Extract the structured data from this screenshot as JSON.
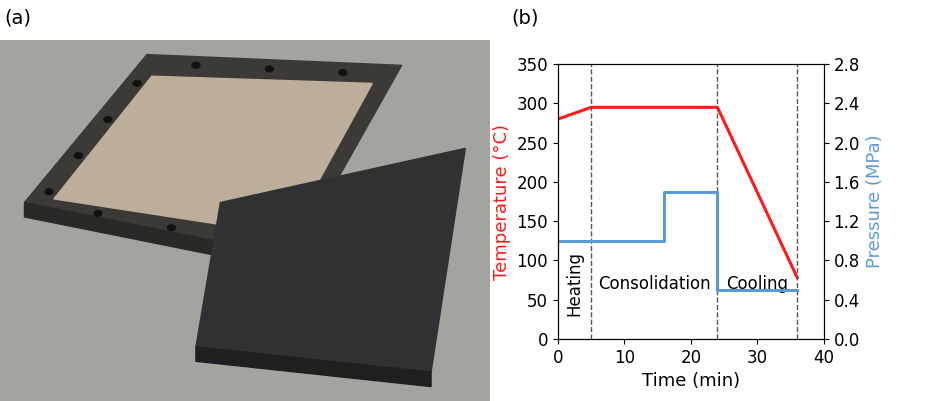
{
  "panel_labels": [
    "(a)",
    "(b)"
  ],
  "chart_data": {
    "type": "line",
    "xlabel": "Time (min)",
    "ylabel": "Temperature (°C)",
    "y2label": "Pressure (MPa)",
    "xlim": [
      0,
      40
    ],
    "xticks": [
      0,
      10,
      20,
      30,
      40
    ],
    "ylim": [
      0,
      350
    ],
    "yticks": [
      0,
      50,
      100,
      150,
      200,
      250,
      300,
      350
    ],
    "y2lim": [
      0.0,
      2.8
    ],
    "y2ticks": [
      0.0,
      0.4,
      0.8,
      1.2,
      1.6,
      2.0,
      2.4,
      2.8
    ],
    "grid": false,
    "series": [
      {
        "color": "#ff1a1a",
        "x": [
          0,
          5,
          24,
          36
        ],
        "values": [
          280,
          295,
          295,
          78
        ]
      },
      {
        "color": "#5b9bd5",
        "axis": "y2",
        "x": [
          0,
          16,
          16,
          24,
          24,
          36
        ],
        "values": [
          1.0,
          1.0,
          1.5,
          1.5,
          0.5,
          0.5
        ]
      }
    ],
    "phases": [
      {
        "label": "Heating",
        "start": 0,
        "end": 5
      },
      {
        "label": "Consolidation",
        "start": 5,
        "end": 24
      },
      {
        "label": "Cooling",
        "start": 24,
        "end": 36
      }
    ]
  }
}
